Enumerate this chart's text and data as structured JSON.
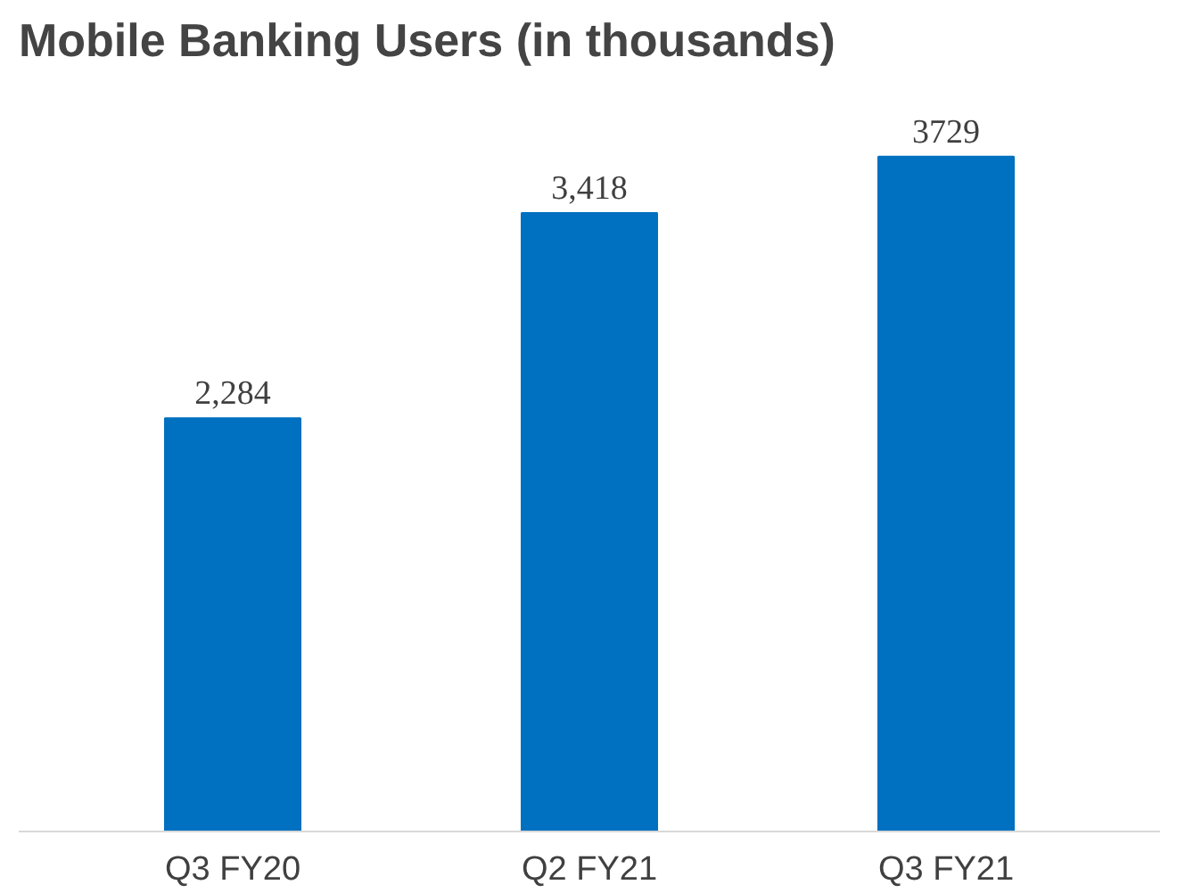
{
  "chart_data": {
    "type": "bar",
    "title": "Mobile Banking Users (in thousands)",
    "categories": [
      "Q3 FY20",
      "Q2 FY21",
      "Q3 FY21"
    ],
    "values": [
      2284,
      3418,
      3729
    ],
    "value_labels": [
      "2,284",
      "3,418",
      "3729"
    ],
    "color": "#0070c0",
    "grid": false
  }
}
